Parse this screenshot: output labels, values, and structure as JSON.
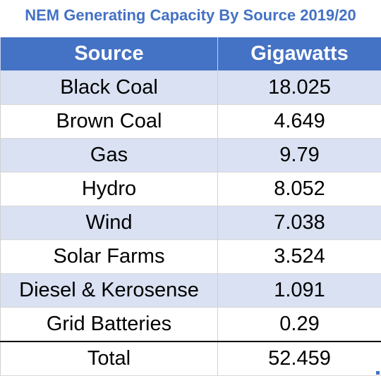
{
  "title": "NEM Generating Capacity By Source 2019/20",
  "table": {
    "header": [
      "Source",
      "Gigawatts"
    ],
    "rows": [
      [
        "Black Coal",
        18.025
      ],
      [
        "Brown Coal",
        4.649
      ],
      [
        "Gas",
        9.79
      ],
      [
        "Hydro",
        8.052
      ],
      [
        "Wind",
        7.038
      ],
      [
        "Solar Farms",
        3.524
      ],
      [
        "Diesel & Kerosense",
        1.091
      ],
      [
        "Grid Batteries",
        0.29
      ]
    ],
    "total": [
      "Total",
      52.459
    ]
  }
}
